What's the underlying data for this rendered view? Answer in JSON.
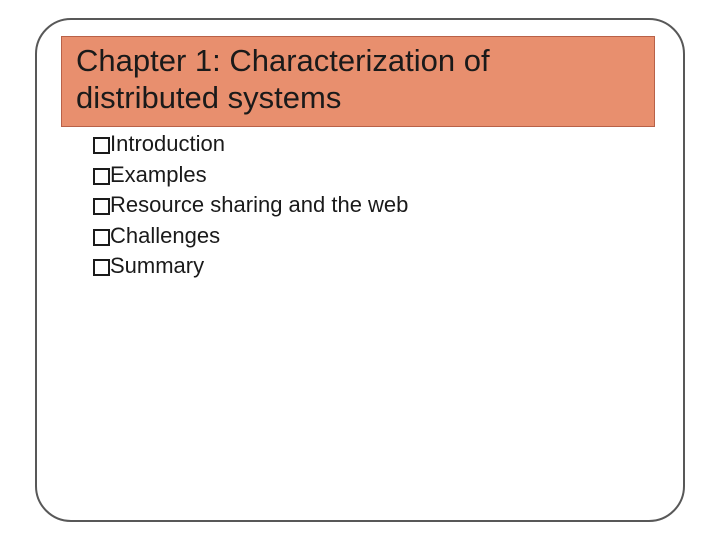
{
  "slide": {
    "title": "Chapter 1: Characterization of distributed systems",
    "bullets": [
      "Introduction",
      "Examples",
      "Resource sharing and the web",
      "Challenges",
      "Summary"
    ]
  },
  "style": {
    "title_bg": "#e88f6e",
    "title_border": "#b86148",
    "title_color": "#1a1a1a",
    "title_fontsize": 31,
    "body_color": "#1a1a1a",
    "body_fontsize": 22,
    "frame_border_color": "#585858",
    "frame_border_radius": 36,
    "background": "#ffffff",
    "bullet_marker": {
      "width": 17,
      "height": 17,
      "border_width": 2,
      "border_color": "#1a1a1a"
    }
  }
}
